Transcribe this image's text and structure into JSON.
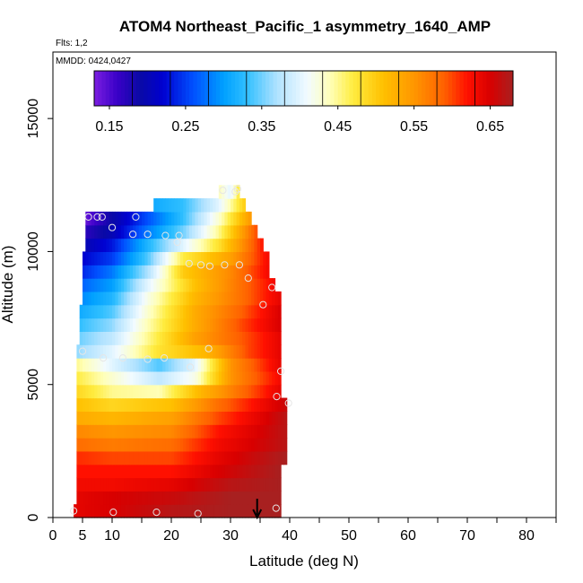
{
  "chart_data": {
    "type": "heatmap",
    "title": "ATOM4 Northeast_Pacific_1 asymmetry_1640_AMP",
    "flights_label": "Flts: 1,2",
    "dates_label": "MMDD: 0424,0427",
    "xlabel": "Latitude (deg N)",
    "ylabel": "Altitude (m)",
    "xlim": [
      0,
      85
    ],
    "ylim": [
      0,
      17500
    ],
    "x_ticks": [
      0,
      5,
      10,
      20,
      30,
      40,
      50,
      60,
      70,
      80
    ],
    "x_ticks_minor": [
      0,
      5,
      10,
      15,
      20,
      25,
      30,
      35,
      40,
      45,
      50,
      55,
      60,
      65,
      70,
      75,
      80,
      85
    ],
    "y_ticks": [
      0,
      5000,
      10000,
      15000
    ],
    "colorbar": {
      "min": 0.13,
      "max": 0.68,
      "step": 0.05,
      "tick_values": [
        0.15,
        0.25,
        0.35,
        0.45,
        0.55,
        0.65
      ],
      "tick_labels": [
        "0.15",
        "0.25",
        "0.35",
        "0.45",
        "0.55",
        "0.65"
      ],
      "stops": [
        [
          0.13,
          "#7b1fe0"
        ],
        [
          0.16,
          "#3a00c8"
        ],
        [
          0.19,
          "#0a0aa5"
        ],
        [
          0.22,
          "#0000d0"
        ],
        [
          0.26,
          "#0050ff"
        ],
        [
          0.3,
          "#00a0ff"
        ],
        [
          0.33,
          "#30bfff"
        ],
        [
          0.37,
          "#b0e2ff"
        ],
        [
          0.41,
          "#f2fbff"
        ],
        [
          0.44,
          "#ffffb8"
        ],
        [
          0.47,
          "#ffec40"
        ],
        [
          0.51,
          "#ffc000"
        ],
        [
          0.55,
          "#ff9600"
        ],
        [
          0.59,
          "#ff6000"
        ],
        [
          0.62,
          "#ff1000"
        ],
        [
          0.65,
          "#d80000"
        ],
        [
          0.68,
          "#a82020"
        ]
      ]
    },
    "heatmap": {
      "lat_step": 0.5,
      "alt_step": 500,
      "rows": [
        {
          "alt": 250,
          "lat_min": 3.5,
          "lat_max": 38.5,
          "v": [
            [
              3.5,
              0.64
            ],
            [
              10,
              0.65
            ],
            [
              20,
              0.67
            ],
            [
              30,
              0.68
            ],
            [
              38.5,
              0.68
            ]
          ]
        },
        {
          "alt": 750,
          "lat_min": 4,
          "lat_max": 38.5,
          "v": [
            [
              4,
              0.64
            ],
            [
              10,
              0.65
            ],
            [
              20,
              0.66
            ],
            [
              30,
              0.68
            ],
            [
              38.5,
              0.68
            ]
          ]
        },
        {
          "alt": 1250,
          "lat_min": 4,
          "lat_max": 38.5,
          "v": [
            [
              4,
              0.63
            ],
            [
              10,
              0.63
            ],
            [
              20,
              0.64
            ],
            [
              30,
              0.67
            ],
            [
              38.5,
              0.68
            ]
          ]
        },
        {
          "alt": 1750,
          "lat_min": 4,
          "lat_max": 38.5,
          "v": [
            [
              4,
              0.62
            ],
            [
              10,
              0.62
            ],
            [
              20,
              0.62
            ],
            [
              28,
              0.65
            ],
            [
              38.5,
              0.68
            ]
          ]
        },
        {
          "alt": 2250,
          "lat_min": 4,
          "lat_max": 39.5,
          "v": [
            [
              4,
              0.61
            ],
            [
              10,
              0.6
            ],
            [
              20,
              0.6
            ],
            [
              28,
              0.64
            ],
            [
              39.5,
              0.68
            ]
          ]
        },
        {
          "alt": 2750,
          "lat_min": 4,
          "lat_max": 39.5,
          "v": [
            [
              4,
              0.58
            ],
            [
              10,
              0.57
            ],
            [
              20,
              0.58
            ],
            [
              28,
              0.63
            ],
            [
              39.5,
              0.67
            ]
          ]
        },
        {
          "alt": 3250,
          "lat_min": 4,
          "lat_max": 39.5,
          "v": [
            [
              4,
              0.56
            ],
            [
              10,
              0.55
            ],
            [
              20,
              0.56
            ],
            [
              28,
              0.62
            ],
            [
              39.5,
              0.67
            ]
          ]
        },
        {
          "alt": 3750,
          "lat_min": 4,
          "lat_max": 39.5,
          "v": [
            [
              4,
              0.53
            ],
            [
              10,
              0.52
            ],
            [
              20,
              0.54
            ],
            [
              28,
              0.6
            ],
            [
              39.5,
              0.67
            ]
          ]
        },
        {
          "alt": 4250,
          "lat_min": 4,
          "lat_max": 39.5,
          "v": [
            [
              4,
              0.51
            ],
            [
              10,
              0.49
            ],
            [
              20,
              0.51
            ],
            [
              28,
              0.58
            ],
            [
              39.5,
              0.66
            ]
          ]
        },
        {
          "alt": 4750,
          "lat_min": 4,
          "lat_max": 38.5,
          "v": [
            [
              4,
              0.49
            ],
            [
              10,
              0.45
            ],
            [
              18,
              0.44
            ],
            [
              25,
              0.52
            ],
            [
              38.5,
              0.64
            ]
          ]
        },
        {
          "alt": 5250,
          "lat_min": 4,
          "lat_max": 38.5,
          "v": [
            [
              4,
              0.47
            ],
            [
              10,
              0.43
            ],
            [
              18,
              0.38
            ],
            [
              24,
              0.42
            ],
            [
              30,
              0.55
            ],
            [
              38.5,
              0.63
            ]
          ]
        },
        {
          "alt": 5750,
          "lat_min": 4,
          "lat_max": 38.5,
          "v": [
            [
              4,
              0.45
            ],
            [
              10,
              0.4
            ],
            [
              18,
              0.34
            ],
            [
              24,
              0.4
            ],
            [
              30,
              0.55
            ],
            [
              38.5,
              0.64
            ]
          ]
        },
        {
          "alt": 6250,
          "lat_min": 4,
          "lat_max": 38.5,
          "v": [
            [
              4,
              0.36
            ],
            [
              10,
              0.4
            ],
            [
              18,
              0.48
            ],
            [
              26,
              0.52
            ],
            [
              33,
              0.6
            ],
            [
              38.5,
              0.64
            ]
          ]
        },
        {
          "alt": 6750,
          "lat_min": 4.5,
          "lat_max": 38.5,
          "v": [
            [
              4.5,
              0.35
            ],
            [
              10,
              0.38
            ],
            [
              16,
              0.45
            ],
            [
              24,
              0.54
            ],
            [
              33,
              0.6
            ],
            [
              38.5,
              0.64
            ]
          ]
        },
        {
          "alt": 7250,
          "lat_min": 4.5,
          "lat_max": 38.5,
          "v": [
            [
              4.5,
              0.33
            ],
            [
              10,
              0.36
            ],
            [
              16,
              0.44
            ],
            [
              24,
              0.53
            ],
            [
              32,
              0.6
            ],
            [
              38.5,
              0.65
            ]
          ]
        },
        {
          "alt": 7750,
          "lat_min": 4.5,
          "lat_max": 38.5,
          "v": [
            [
              4.5,
              0.31
            ],
            [
              10,
              0.34
            ],
            [
              16,
              0.43
            ],
            [
              24,
              0.53
            ],
            [
              32,
              0.59
            ],
            [
              38.5,
              0.65
            ]
          ]
        },
        {
          "alt": 8250,
          "lat_min": 5,
          "lat_max": 38.5,
          "v": [
            [
              5,
              0.29
            ],
            [
              10,
              0.32
            ],
            [
              16,
              0.42
            ],
            [
              24,
              0.52
            ],
            [
              32,
              0.58
            ],
            [
              38.5,
              0.64
            ]
          ]
        },
        {
          "alt": 8750,
          "lat_min": 5,
          "lat_max": 37.5,
          "v": [
            [
              5,
              0.27
            ],
            [
              10,
              0.3
            ],
            [
              16,
              0.4
            ],
            [
              24,
              0.51
            ],
            [
              32,
              0.58
            ],
            [
              37.5,
              0.63
            ]
          ]
        },
        {
          "alt": 9250,
          "lat_min": 5,
          "lat_max": 36.5,
          "v": [
            [
              5,
              0.24
            ],
            [
              10,
              0.28
            ],
            [
              16,
              0.37
            ],
            [
              22,
              0.5
            ],
            [
              30,
              0.56
            ],
            [
              36.5,
              0.63
            ]
          ]
        },
        {
          "alt": 9750,
          "lat_min": 5,
          "lat_max": 36.5,
          "v": [
            [
              5,
              0.22
            ],
            [
              10,
              0.25
            ],
            [
              16,
              0.34
            ],
            [
              22,
              0.47
            ],
            [
              30,
              0.54
            ],
            [
              36.5,
              0.63
            ]
          ]
        },
        {
          "alt": 10250,
          "lat_min": 5.5,
          "lat_max": 35.5,
          "v": [
            [
              5.5,
              0.2
            ],
            [
              10,
              0.23
            ],
            [
              16,
              0.32
            ],
            [
              22,
              0.4
            ],
            [
              28,
              0.48
            ],
            [
              35.5,
              0.62
            ]
          ]
        },
        {
          "alt": 10750,
          "lat_min": 5.5,
          "lat_max": 34.5,
          "v": [
            [
              5.5,
              0.17
            ],
            [
              10,
              0.2
            ],
            [
              16,
              0.28
            ],
            [
              22,
              0.35
            ],
            [
              28,
              0.45
            ],
            [
              34.5,
              0.6
            ]
          ]
        },
        {
          "alt": 11250,
          "lat_min": 5.5,
          "lat_max": 33.5,
          "v": [
            [
              5.5,
              0.14
            ],
            [
              10,
              0.19
            ],
            [
              16,
              0.26
            ],
            [
              22,
              0.33
            ],
            [
              28,
              0.43
            ],
            [
              33.5,
              0.55
            ]
          ]
        },
        {
          "alt": 11750,
          "lat_min": 17,
          "lat_max": 32.5,
          "v": [
            [
              17,
              0.31
            ],
            [
              22,
              0.33
            ],
            [
              28,
              0.4
            ],
            [
              32.5,
              0.5
            ]
          ]
        },
        {
          "alt": 12250,
          "lat_min": 28,
          "lat_max": 31.5,
          "v": [
            [
              28,
              0.44
            ],
            [
              30,
              0.4
            ],
            [
              31.5,
              0.48
            ]
          ]
        }
      ]
    },
    "sample_points": [
      [
        3.5,
        250
      ],
      [
        10.2,
        200
      ],
      [
        17.5,
        200
      ],
      [
        24.5,
        150
      ],
      [
        37.7,
        350
      ],
      [
        39.8,
        4300
      ],
      [
        37.8,
        4550
      ],
      [
        38.5,
        5500
      ],
      [
        23.2,
        5650
      ],
      [
        18.8,
        6000
      ],
      [
        16,
        5950
      ],
      [
        11.8,
        6000
      ],
      [
        8.5,
        6000
      ],
      [
        5,
        6250
      ],
      [
        26.3,
        6350
      ],
      [
        35.5,
        8000
      ],
      [
        37,
        8650
      ],
      [
        33,
        9000
      ],
      [
        31.5,
        9500
      ],
      [
        29,
        9500
      ],
      [
        26.5,
        9450
      ],
      [
        25,
        9500
      ],
      [
        23,
        9550
      ],
      [
        21,
        10350
      ],
      [
        21.3,
        10600
      ],
      [
        19,
        10600
      ],
      [
        16,
        10650
      ],
      [
        13.5,
        10650
      ],
      [
        10,
        10900
      ],
      [
        6,
        11300
      ],
      [
        7.5,
        11300
      ],
      [
        8.3,
        11300
      ],
      [
        14,
        11300
      ],
      [
        28.7,
        12300
      ],
      [
        30.8,
        12250
      ],
      [
        31.2,
        12350
      ]
    ],
    "arrow_lat": 34.5
  }
}
